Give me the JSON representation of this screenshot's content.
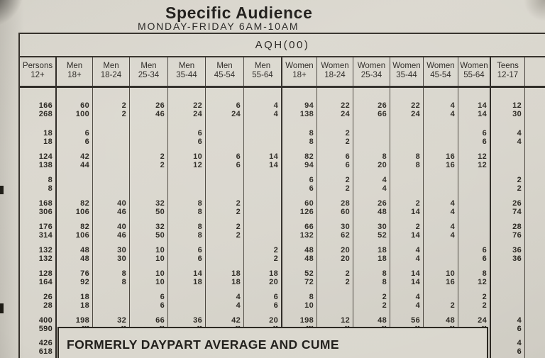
{
  "page": {
    "title": "Specific Audience",
    "subtitle": "MONDAY-FRIDAY 6AM-10AM",
    "band_label": "AQH(00)",
    "banner": "FORMERLY DAYPART AVERAGE AND CUME"
  },
  "colors": {
    "paper": "#d8d5cc",
    "ink": "#28251f",
    "rule": "#4a453d"
  },
  "chart_data": {
    "type": "table",
    "title": "Specific Audience — MONDAY-FRIDAY 6AM-10AM — AQH(00)",
    "row_format": "each row is a pair of lines: AQH over Cume",
    "columns": [
      {
        "top": "Persons",
        "bottom": "12+"
      },
      {
        "top": "Men",
        "bottom": "18+"
      },
      {
        "top": "Men",
        "bottom": "18-24"
      },
      {
        "top": "Men",
        "bottom": "25-34"
      },
      {
        "top": "Men",
        "bottom": "35-44"
      },
      {
        "top": "Men",
        "bottom": "45-54"
      },
      {
        "top": "Men",
        "bottom": "55-64"
      },
      {
        "top": "Women",
        "bottom": "18+"
      },
      {
        "top": "Women",
        "bottom": "18-24"
      },
      {
        "top": "Women",
        "bottom": "25-34"
      },
      {
        "top": "Women",
        "bottom": "35-44"
      },
      {
        "top": "Women",
        "bottom": "45-54"
      },
      {
        "top": "Women",
        "bottom": "55-64"
      },
      {
        "top": "Teens",
        "bottom": "12-17"
      }
    ],
    "rows": [
      {
        "aqh": [
          "166",
          "60",
          "2",
          "26",
          "22",
          "6",
          "4",
          "94",
          "22",
          "26",
          "22",
          "4",
          "14",
          "12"
        ],
        "cume": [
          "268",
          "100",
          "2",
          "46",
          "24",
          "24",
          "4",
          "138",
          "24",
          "66",
          "24",
          "4",
          "14",
          "30"
        ]
      },
      {
        "aqh": [
          "18",
          "6",
          "",
          "",
          "6",
          "",
          "",
          "8",
          "2",
          "",
          "",
          "",
          "6",
          "4"
        ],
        "cume": [
          "18",
          "6",
          "",
          "",
          "6",
          "",
          "",
          "8",
          "2",
          "",
          "",
          "",
          "6",
          "4"
        ]
      },
      {
        "aqh": [
          "124",
          "42",
          "",
          "2",
          "10",
          "6",
          "14",
          "82",
          "6",
          "8",
          "8",
          "16",
          "12",
          ""
        ],
        "cume": [
          "138",
          "44",
          "",
          "2",
          "12",
          "6",
          "14",
          "94",
          "6",
          "20",
          "8",
          "16",
          "12",
          ""
        ]
      },
      {
        "aqh": [
          "8",
          "",
          "",
          "",
          "",
          "",
          "",
          "6",
          "2",
          "4",
          "",
          "",
          "",
          "2"
        ],
        "cume": [
          "8",
          "",
          "",
          "",
          "",
          "",
          "",
          "6",
          "2",
          "4",
          "",
          "",
          "",
          "2"
        ]
      },
      {
        "aqh": [
          "168",
          "82",
          "40",
          "32",
          "8",
          "2",
          "",
          "60",
          "28",
          "26",
          "2",
          "4",
          "",
          "26"
        ],
        "cume": [
          "306",
          "106",
          "46",
          "50",
          "8",
          "2",
          "",
          "126",
          "60",
          "48",
          "14",
          "4",
          "",
          "74"
        ]
      },
      {
        "aqh": [
          "176",
          "82",
          "40",
          "32",
          "8",
          "2",
          "",
          "66",
          "30",
          "30",
          "2",
          "4",
          "",
          "28"
        ],
        "cume": [
          "314",
          "106",
          "46",
          "50",
          "8",
          "2",
          "",
          "132",
          "62",
          "52",
          "14",
          "4",
          "",
          "76"
        ]
      },
      {
        "aqh": [
          "132",
          "48",
          "30",
          "10",
          "6",
          "",
          "2",
          "48",
          "20",
          "18",
          "4",
          "",
          "6",
          "36"
        ],
        "cume": [
          "132",
          "48",
          "30",
          "10",
          "6",
          "",
          "2",
          "48",
          "20",
          "18",
          "4",
          "",
          "6",
          "36"
        ]
      },
      {
        "aqh": [
          "128",
          "76",
          "8",
          "10",
          "14",
          "18",
          "18",
          "52",
          "2",
          "8",
          "14",
          "10",
          "8",
          ""
        ],
        "cume": [
          "164",
          "92",
          "8",
          "10",
          "18",
          "18",
          "20",
          "72",
          "2",
          "8",
          "14",
          "16",
          "12",
          ""
        ]
      },
      {
        "aqh": [
          "26",
          "18",
          "",
          "6",
          "",
          "4",
          "6",
          "8",
          "",
          "2",
          "4",
          "",
          "2",
          ""
        ],
        "cume": [
          "28",
          "18",
          "",
          "6",
          "",
          "4",
          "6",
          "10",
          "",
          "2",
          "4",
          "2",
          "2",
          ""
        ]
      },
      {
        "aqh": [
          "400",
          "198",
          "32",
          "66",
          "36",
          "42",
          "20",
          "198",
          "12",
          "48",
          "56",
          "48",
          "24",
          "4"
        ],
        "cume": [
          "590",
          "---",
          "--",
          "--",
          "--",
          "--",
          "--",
          "---",
          "--",
          "--",
          "--",
          "--",
          "--",
          "6"
        ]
      },
      {
        "aqh": [
          "426",
          "",
          "",
          "",
          "",
          "",
          "",
          "",
          "",
          "",
          "",
          "",
          "",
          "4"
        ],
        "cume": [
          "618",
          "",
          "",
          "",
          "",
          "",
          "",
          "",
          "",
          "",
          "",
          "",
          "",
          "6"
        ]
      }
    ]
  }
}
